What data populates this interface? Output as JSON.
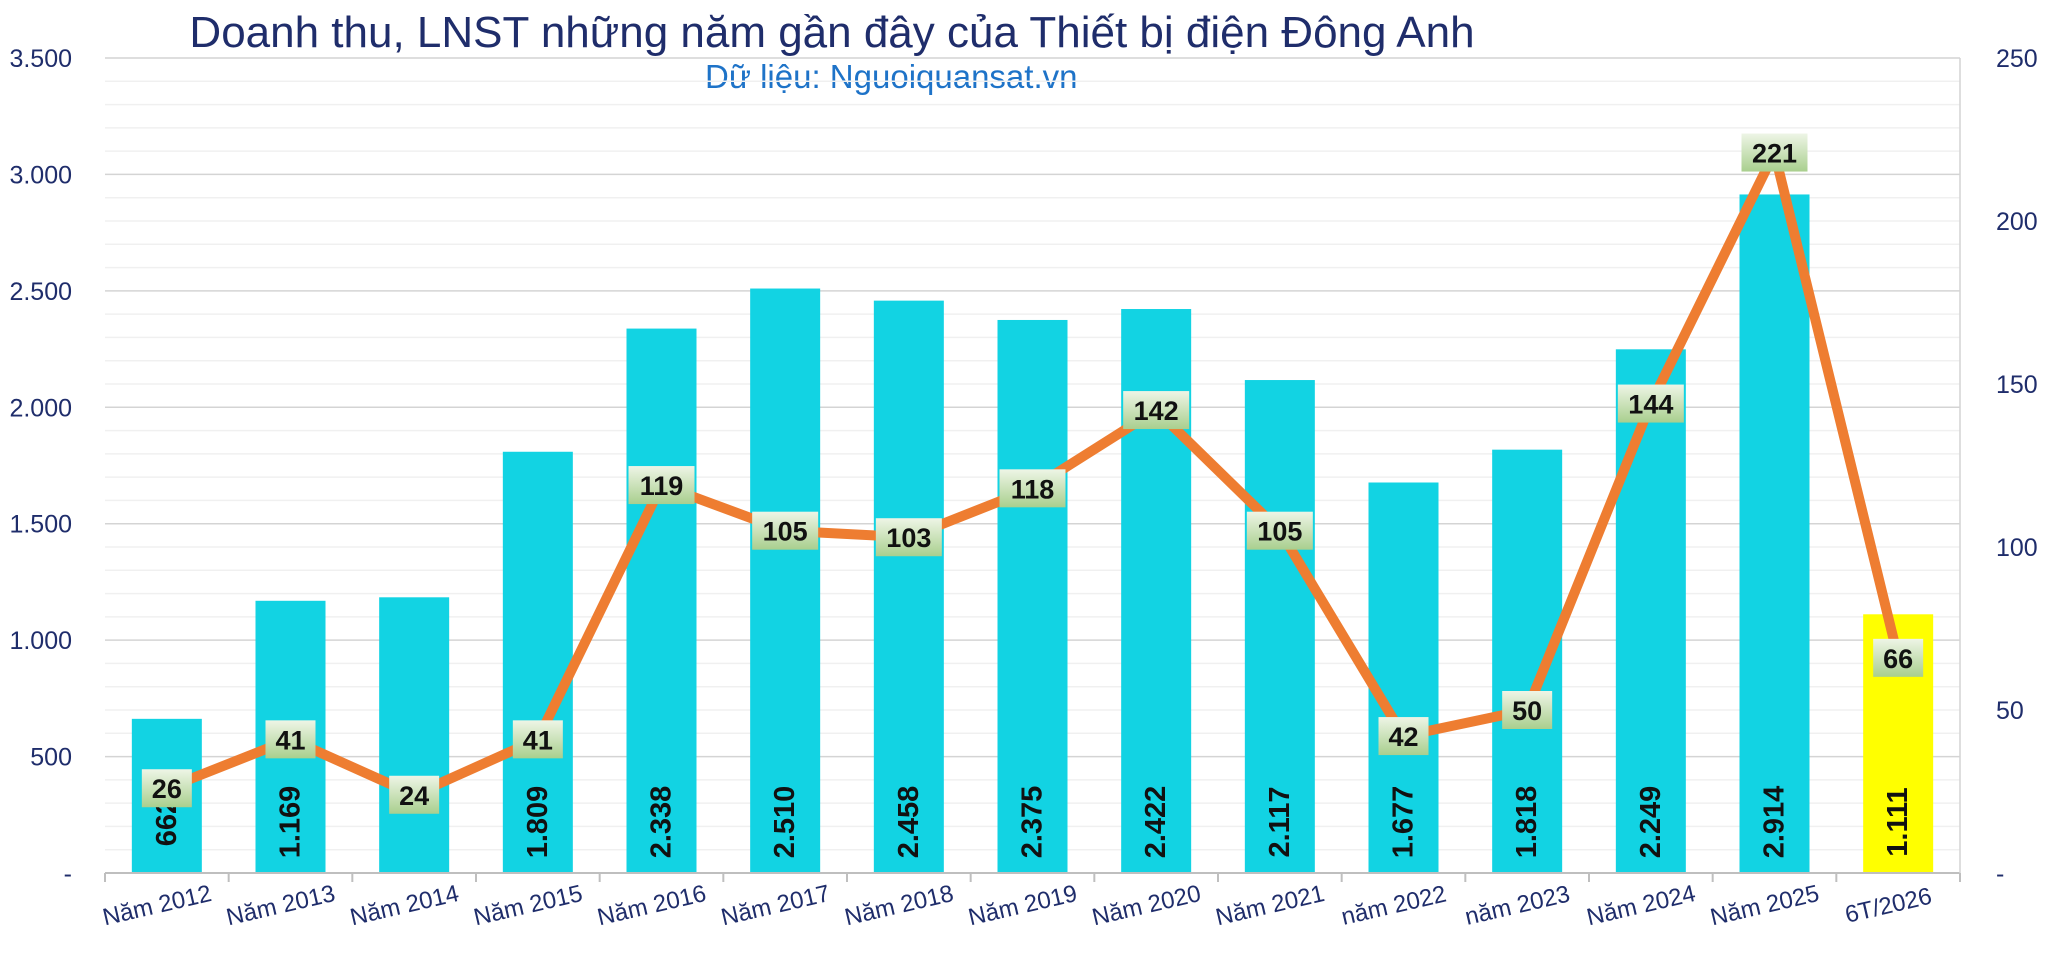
{
  "chart_data": {
    "type": "bar",
    "title": "Doanh thu, LNST những năm gần đây của Thiết bị điện Đông Anh",
    "subtitle": "Dữ liệu: Nguoiquansat.vn",
    "categories": [
      "Năm 2012",
      "Năm 2013",
      "Năm 2014",
      "Năm 2015",
      "Năm 2016",
      "Năm 2017",
      "Năm 2018",
      "Năm 2019",
      "Năm 2020",
      "Năm 2021",
      "năm 2022",
      "năm 2023",
      "Năm 2024",
      "Năm 2025",
      "6T/2026"
    ],
    "series": [
      {
        "type": "bar",
        "axis": "left",
        "color": "#12d3e3",
        "highlight_color": "#ffff00",
        "highlight_index": 14,
        "values": [
          662,
          1169,
          1184,
          1809,
          2338,
          2510,
          2458,
          2375,
          2422,
          2117,
          1677,
          1818,
          2249,
          2914,
          1111
        ],
        "labels": [
          "662",
          "1.169",
          "",
          "1.809",
          "2.338",
          "2.510",
          "2.458",
          "2.375",
          "2.422",
          "2.117",
          "1.677",
          "1.818",
          "2.249",
          "2.914",
          "1.111"
        ]
      },
      {
        "type": "line",
        "axis": "right",
        "color": "#ee7d31",
        "values": [
          26,
          41,
          24,
          41,
          119,
          105,
          103,
          118,
          142,
          105,
          42,
          50,
          144,
          221,
          66
        ],
        "labels": [
          "26",
          "41",
          "24",
          "41",
          "119",
          "105",
          "103",
          "118",
          "142",
          "105",
          "42",
          "50",
          "144",
          "221",
          "66"
        ]
      }
    ],
    "y_left": {
      "min": 0,
      "max": 3500,
      "ticks": [
        0,
        500,
        1000,
        1500,
        2000,
        2500,
        3000,
        3500
      ],
      "tick_labels": [
        "-",
        "500",
        "1.000",
        "1.500",
        "2.000",
        "2.500",
        "3.000",
        "3.500"
      ]
    },
    "y_right": {
      "min": 0,
      "max": 250,
      "ticks": [
        0,
        50,
        100,
        150,
        200,
        250
      ],
      "tick_labels": [
        "-",
        "50",
        "100",
        "150",
        "200",
        "250"
      ]
    },
    "grid": true,
    "legend": "none"
  }
}
